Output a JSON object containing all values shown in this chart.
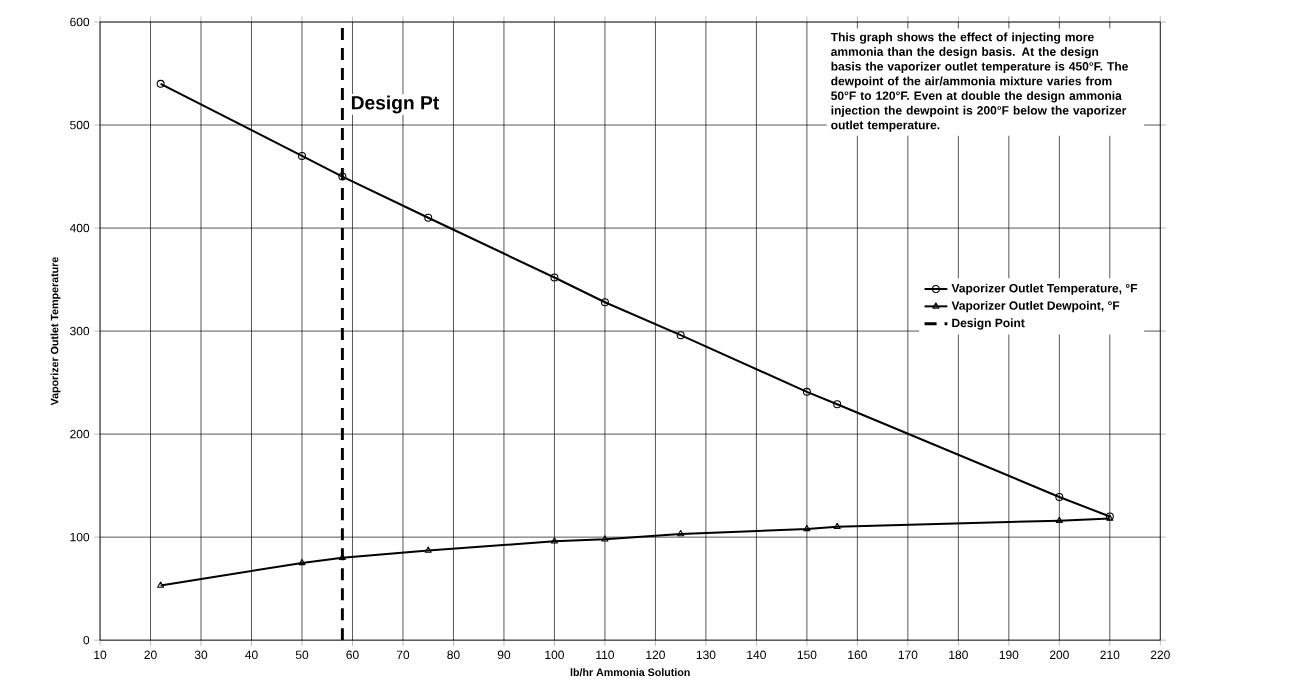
{
  "chart_data": {
    "type": "line",
    "xlabel": "lb/hr Ammonia Solution",
    "ylabel": "Vaporizer Outlet Temperature",
    "xlim": [
      10,
      220
    ],
    "xticks": [
      10,
      20,
      30,
      40,
      50,
      60,
      70,
      80,
      90,
      100,
      110,
      120,
      130,
      140,
      150,
      160,
      170,
      180,
      190,
      200,
      210,
      220
    ],
    "ylim": [
      0,
      600
    ],
    "yticks": [
      0,
      100,
      200,
      300,
      400,
      500,
      600
    ],
    "grid": true,
    "legend": "right",
    "series": [
      {
        "name": "Vaporizer Outlet Temperature, °F",
        "color": "#000000",
        "marker": "circle",
        "x": [
          22,
          50,
          58,
          75,
          100,
          110,
          125,
          150,
          156,
          200,
          210
        ],
        "values": [
          540,
          470,
          450,
          410,
          352,
          328,
          296,
          241,
          229,
          139,
          120
        ]
      },
      {
        "name": "Vaporizer Outlet Dewpoint, °F",
        "color": "#000000",
        "marker": "triangle",
        "x": [
          22,
          50,
          58,
          75,
          100,
          110,
          125,
          150,
          156,
          200,
          210
        ],
        "values": [
          53,
          75,
          80,
          87,
          96,
          98,
          103,
          108,
          110,
          116,
          118
        ]
      },
      {
        "name": "Design Point",
        "color": "#000000",
        "marker": "none",
        "line_style": "dashed",
        "x": [
          58,
          58
        ],
        "values": [
          0,
          600
        ]
      }
    ],
    "annotations": [
      {
        "text": "Design Pt",
        "x": 58,
        "y": 520
      },
      "This graph shows the effect of injecting more ammonia than the design basis. At the design basis the vaporizer outlet temperature is 450°F. The dewpoint of the air/ammonia mixture varies from 50°F to 120°F. Even at double the design ammonia injection the dewpoint is 200°F below the vaporizer outlet temperature."
    ]
  }
}
